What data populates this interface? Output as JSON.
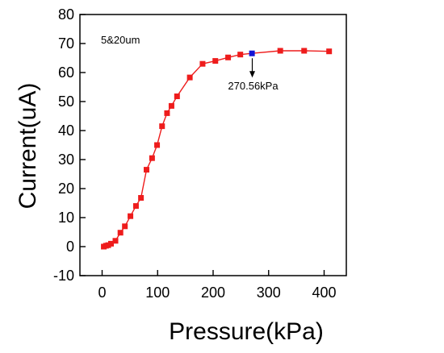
{
  "chart_data": {
    "type": "line",
    "title": "",
    "xlabel": "Pressure(kPa)",
    "ylabel": "Current(uA)",
    "xlim": [
      -40,
      440
    ],
    "ylim": [
      -10,
      80
    ],
    "xticks": [
      0,
      100,
      200,
      300,
      400
    ],
    "yticks": [
      -10,
      0,
      10,
      20,
      30,
      40,
      50,
      60,
      70,
      80
    ],
    "grid": false,
    "legend": "none",
    "series": [
      {
        "color": "#ee1c1c",
        "marker": "square",
        "x": [
          3,
          7,
          11,
          16,
          24,
          33,
          41,
          51,
          61,
          70,
          80,
          90,
          99,
          108,
          117,
          125,
          135,
          158,
          181,
          204,
          227,
          249,
          270,
          321,
          364,
          409
        ],
        "y": [
          0,
          0.3,
          0.5,
          1,
          2,
          4.8,
          7,
          10.5,
          14,
          16.8,
          26.5,
          30.5,
          35,
          41.5,
          46,
          48.5,
          51.8,
          58.3,
          63,
          64,
          65.2,
          66.2,
          66.6,
          67.5,
          67.5,
          67.3
        ]
      }
    ],
    "highlight": {
      "x": 270.56,
      "y": 66.6,
      "color": "#1414d6",
      "label": "270.56kPa"
    },
    "annotation": "5&20um"
  }
}
